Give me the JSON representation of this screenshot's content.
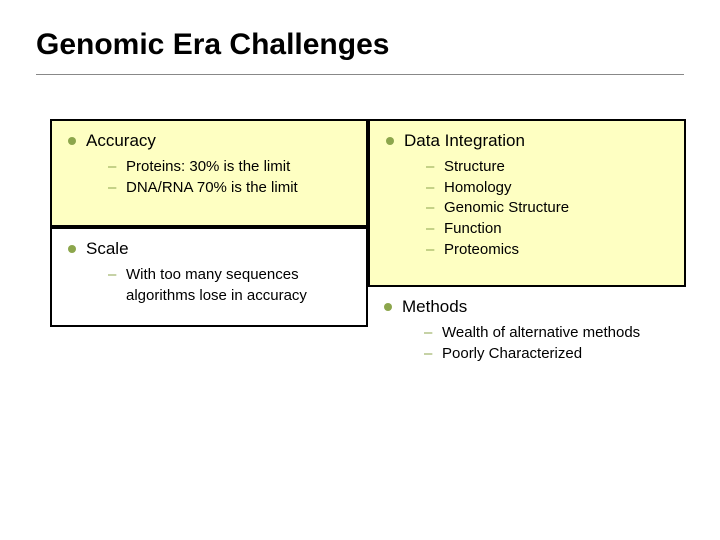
{
  "title": "Genomic Era Challenges",
  "boxes": {
    "accuracy": {
      "heading": "Accuracy",
      "items": [
        "Proteins: 30% is the limit",
        "DNA/RNA 70% is the limit"
      ],
      "bg": "#feffc2",
      "border": "#000000"
    },
    "scale": {
      "heading": "Scale",
      "items": [
        "With too many sequences algorithms lose in accuracy"
      ],
      "bg": "#ffffff",
      "border": "#000000"
    },
    "dataint": {
      "heading": "Data Integration",
      "items": [
        "Structure",
        "Homology",
        "Genomic Structure",
        "Function",
        "Proteomics"
      ],
      "bg": "#feffc2",
      "border": "#000000"
    },
    "methods": {
      "heading": "Methods",
      "items": [
        "Wealth of alternative methods",
        "Poorly Characterized"
      ],
      "bg": "transparent",
      "border": "transparent"
    }
  },
  "style": {
    "bullet_color": "#8ca64c",
    "dash_color": "#8ca64c",
    "title_fontsize": 30,
    "lvl1_fontsize": 17,
    "lvl2_fontsize": 15,
    "underline_color": "#888888",
    "slide_bg": "#ffffff"
  }
}
